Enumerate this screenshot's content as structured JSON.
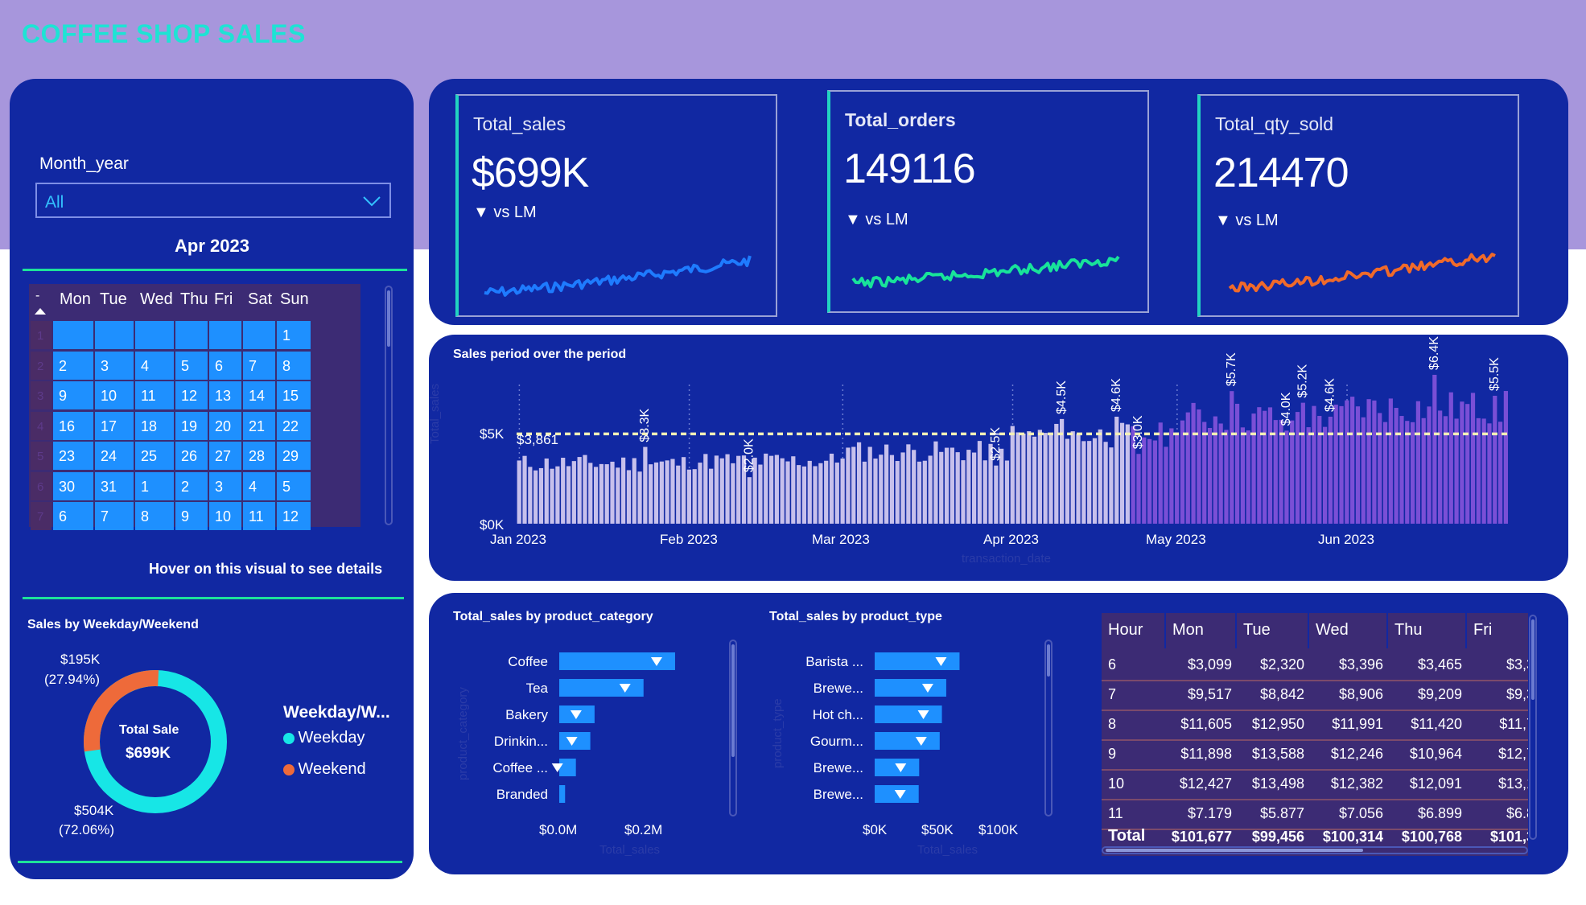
{
  "title": "COFFEE SHOP SALES",
  "slicer": {
    "label": "Month_year",
    "value": "All"
  },
  "calendar": {
    "month": "Apr 2023",
    "sort_indicator": "-",
    "days": [
      "Mon",
      "Tue",
      "Wed",
      "Thu",
      "Fri",
      "Sat",
      "Sun"
    ],
    "week_numbers": [
      "1",
      "2",
      "3",
      "4",
      "5",
      "6",
      "7"
    ],
    "weeks": [
      [
        "",
        "",
        "",
        "",
        "",
        "",
        "1"
      ],
      [
        "2",
        "3",
        "4",
        "5",
        "6",
        "7",
        "8"
      ],
      [
        "9",
        "10",
        "11",
        "12",
        "13",
        "14",
        "15"
      ],
      [
        "16",
        "17",
        "18",
        "19",
        "20",
        "21",
        "22"
      ],
      [
        "23",
        "24",
        "25",
        "26",
        "27",
        "28",
        "29"
      ],
      [
        "30",
        "31",
        "1",
        "2",
        "3",
        "4",
        "5"
      ],
      [
        "6",
        "7",
        "8",
        "9",
        "10",
        "11",
        "12"
      ]
    ],
    "hover_hint": "Hover on this visual to see details"
  },
  "kpis": [
    {
      "label": "Total_sales",
      "value": "$699K",
      "vs": "vs LM",
      "color": "#1e7bff"
    },
    {
      "label": "Total_orders",
      "value": "149116",
      "vs": "vs LM",
      "color": "#18e39a"
    },
    {
      "label": "Total_qty_sold",
      "value": "214470",
      "vs": "vs LM",
      "color": "#f06a2a"
    }
  ],
  "donut": {
    "title": "Sales by Weekday/Weekend",
    "center_label": "Total Sale",
    "center_value": "$699K",
    "weekend_label": "$195K",
    "weekend_pct": "(27.94%)",
    "weekday_label": "$504K",
    "weekday_pct": "(72.06%)",
    "legend_title": "Weekday/W...",
    "legend": [
      {
        "name": "Weekday",
        "color": "#17e6e6"
      },
      {
        "name": "Weekend",
        "color": "#ee6a3a"
      }
    ]
  },
  "period_chart": {
    "title": "Sales period over the period",
    "ylabel": "Total_sales",
    "xlabel": "transaction_date",
    "yticks": [
      "$5K",
      "$0K"
    ],
    "xticks": [
      "Jan 2023",
      "Feb 2023",
      "Mar 2023",
      "Apr 2023",
      "May 2023",
      "Jun 2023"
    ],
    "avg_label": "$3,861",
    "data_labels": [
      "$3.3K",
      "$2.0K",
      "$2.5K",
      "$4.5K",
      "$4.6K",
      "$3.0K",
      "$5.7K",
      "$4.0K",
      "$5.2K",
      "$4.6K",
      "$6.4K",
      "$5.5K"
    ]
  },
  "category_chart": {
    "title": "Total_sales by product_category",
    "ylabel": "product_category",
    "xlabel": "Total_sales",
    "xticks": [
      "$0.0M",
      "$0.2M"
    ],
    "labels": [
      "Coffee",
      "Tea",
      "Bakery",
      "Drinkin...",
      "Coffee ...",
      "Branded"
    ]
  },
  "type_chart": {
    "title": "Total_sales by product_type",
    "ylabel": "product_type",
    "xlabel": "Total_sales",
    "xticks": [
      "$0K",
      "$50K",
      "$100K"
    ],
    "labels": [
      "Barista ...",
      "Brewe...",
      "Hot ch...",
      "Gourm...",
      "Brewe...",
      "Brewe..."
    ]
  },
  "chart_data": [
    {
      "type": "bar",
      "title": "Sales period over the period",
      "xlabel": "transaction_date",
      "ylabel": "Total_sales",
      "x_range": [
        "2023-01-01",
        "2023-06-30"
      ],
      "ylim": [
        0,
        6500
      ],
      "average": 3861,
      "monthly_level_k": [
        {
          "month": "Jan 2023",
          "level": 2.6
        },
        {
          "month": "Feb 2023",
          "level": 2.7
        },
        {
          "month": "Mar 2023",
          "level": 3.1
        },
        {
          "month": "Apr 2023",
          "level": 3.8
        },
        {
          "month": "May 2023",
          "level": 4.6
        },
        {
          "month": "Jun 2023",
          "level": 5.0
        }
      ],
      "labeled_points_k": [
        {
          "date": "2023-01-24",
          "value": 3.3
        },
        {
          "date": "2023-02-12",
          "value": 2.0
        },
        {
          "date": "2023-03-29",
          "value": 2.5
        },
        {
          "date": "2023-04-10",
          "value": 4.5
        },
        {
          "date": "2023-04-20",
          "value": 4.6
        },
        {
          "date": "2023-04-24",
          "value": 3.0
        },
        {
          "date": "2023-05-11",
          "value": 5.7
        },
        {
          "date": "2023-05-21",
          "value": 4.0
        },
        {
          "date": "2023-05-24",
          "value": 5.2
        },
        {
          "date": "2023-05-29",
          "value": 4.6
        },
        {
          "date": "2023-06-17",
          "value": 6.4
        },
        {
          "date": "2023-06-28",
          "value": 5.5
        }
      ]
    },
    {
      "type": "bar",
      "title": "Total_sales by product_category",
      "categories": [
        "Coffee",
        "Tea",
        "Bakery",
        "Drinkin...",
        "Coffee ...",
        "Branded"
      ],
      "values": [
        269952,
        196406,
        82316,
        72416,
        38791,
        13607
      ],
      "xlim": [
        0,
        300000
      ]
    },
    {
      "type": "bar",
      "title": "Total_sales by product_type",
      "categories": [
        "Barista ...",
        "Brewe...",
        "Hot ch...",
        "Gourm...",
        "Brewe...",
        "Brewe..."
      ],
      "values": [
        91406,
        77082,
        72416,
        70034,
        47932,
        47417
      ],
      "xlim": [
        0,
        130000
      ]
    }
  ],
  "heatmap_table": {
    "headers": [
      "Hour",
      "Mon",
      "Tue",
      "Wed",
      "Thu",
      "Fri"
    ],
    "rows": [
      [
        "6",
        "$3,099",
        "$2,320",
        "$3,396",
        "$3,465",
        "$3,3"
      ],
      [
        "7",
        "$9,517",
        "$8,842",
        "$8,906",
        "$9,209",
        "$9,3"
      ],
      [
        "8",
        "$11,605",
        "$12,950",
        "$11,991",
        "$11,420",
        "$11,7"
      ],
      [
        "9",
        "$11,898",
        "$13,588",
        "$12,246",
        "$10,964",
        "$12,7"
      ],
      [
        "10",
        "$12,427",
        "$13,498",
        "$12,382",
        "$12,091",
        "$13,1"
      ],
      [
        "11",
        "$7.179",
        "$5.877",
        "$7.056",
        "$6.899",
        "$6.8"
      ]
    ],
    "total": [
      "Total",
      "$101,677",
      "$99,456",
      "$100,314",
      "$100,768",
      "$101,3"
    ]
  }
}
